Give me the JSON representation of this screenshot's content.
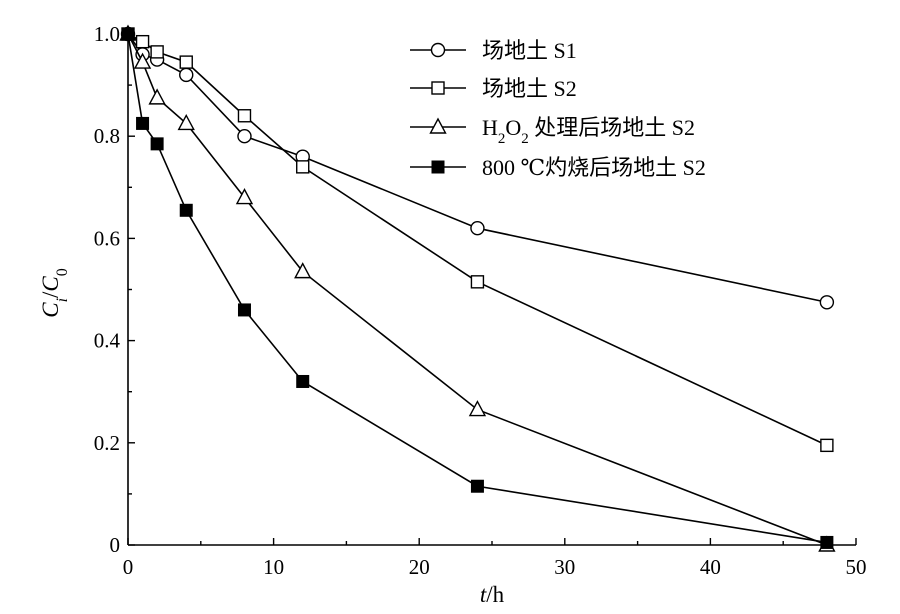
{
  "chart_data": {
    "type": "line",
    "xlabel": "t/h",
    "ylabel": "Ci/C0",
    "xlim": [
      0,
      50
    ],
    "ylim": [
      0,
      1.0
    ],
    "x_ticks": [
      0,
      10,
      20,
      30,
      40,
      50
    ],
    "x_tick_labels": [
      "0",
      "10",
      "20",
      "30",
      "40",
      "50"
    ],
    "y_ticks": [
      0,
      0.2,
      0.4,
      0.6,
      0.8,
      1.0
    ],
    "y_tick_labels": [
      "0",
      "0.2",
      "0.4",
      "0.6",
      "0.8",
      "1.0"
    ],
    "grid": false,
    "legend_position": "top-right",
    "series": [
      {
        "name": "场地土 S1",
        "marker": "circle-open",
        "x": [
          0,
          1,
          2,
          4,
          8,
          12,
          24,
          48
        ],
        "y": [
          1.0,
          0.96,
          0.95,
          0.92,
          0.8,
          0.76,
          0.62,
          0.475
        ]
      },
      {
        "name": "场地土 S2",
        "marker": "square-open",
        "x": [
          0,
          1,
          2,
          4,
          8,
          12,
          24,
          48
        ],
        "y": [
          1.0,
          0.985,
          0.965,
          0.945,
          0.84,
          0.74,
          0.515,
          0.195
        ]
      },
      {
        "name": "H2O2 处理后场地土 S2",
        "marker": "triangle-open",
        "x": [
          0,
          1,
          2,
          4,
          8,
          12,
          24,
          48
        ],
        "y": [
          1.0,
          0.945,
          0.875,
          0.825,
          0.68,
          0.535,
          0.265,
          0.0
        ]
      },
      {
        "name": "800 ℃灼烧后场地土 S2",
        "marker": "square-filled",
        "x": [
          0,
          1,
          2,
          4,
          8,
          12,
          24,
          48
        ],
        "y": [
          1.0,
          0.825,
          0.785,
          0.655,
          0.46,
          0.32,
          0.115,
          0.005
        ]
      }
    ]
  }
}
